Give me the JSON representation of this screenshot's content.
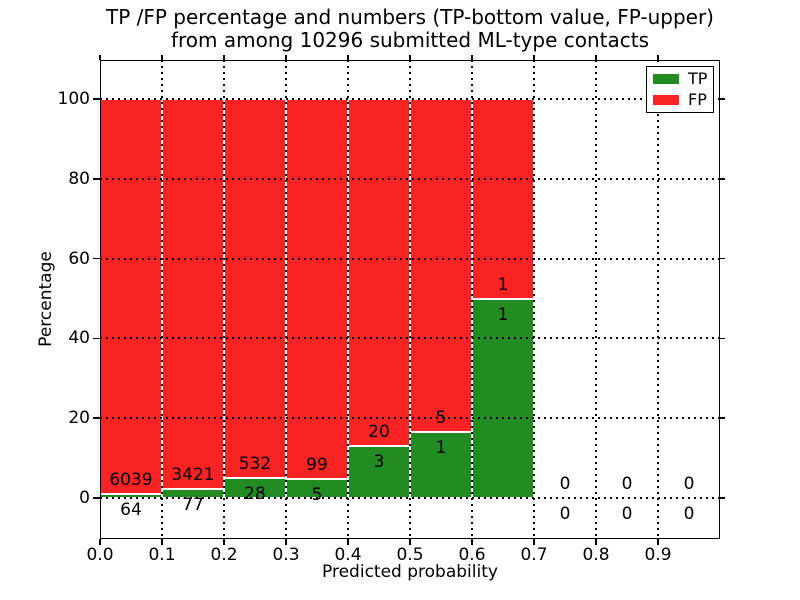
{
  "title": {
    "line1": "TP /FP percentage and numbers (TP-bottom value, FP-upper)",
    "line2": "from among 10296 submitted ML-type contacts"
  },
  "axes": {
    "xlabel": "Predicted probability",
    "ylabel": "Percentage",
    "xtick_labels": [
      "0.0",
      "0.1",
      "0.2",
      "0.3",
      "0.4",
      "0.5",
      "0.6",
      "0.7",
      "0.8",
      "0.9"
    ],
    "ytick_labels": [
      "0",
      "20",
      "40",
      "60",
      "80",
      "100"
    ],
    "ytick_values": [
      0,
      20,
      40,
      60,
      80,
      100
    ]
  },
  "legend": {
    "items": [
      {
        "label": "TP",
        "color": "#228b22"
      },
      {
        "label": "FP",
        "color": "#fa2323"
      }
    ]
  },
  "colors": {
    "tp": "#228b22",
    "fp": "#fa2323",
    "grid": "#000000",
    "frame": "#000000",
    "bar_edge": "#ffffff"
  },
  "chart_data": {
    "type": "bar",
    "stacked": true,
    "title": "TP /FP percentage and numbers (TP-bottom value, FP-upper) from among 10296 submitted ML-type contacts",
    "xlabel": "Predicted probability",
    "ylabel": "Percentage",
    "total_submitted": 10296,
    "bin_width": 0.1,
    "bin_starts": [
      0.0,
      0.1,
      0.2,
      0.3,
      0.4,
      0.5,
      0.6,
      0.7,
      0.8,
      0.9
    ],
    "categories": [
      "0.0-0.1",
      "0.1-0.2",
      "0.2-0.3",
      "0.3-0.4",
      "0.4-0.5",
      "0.5-0.6",
      "0.6-0.7",
      "0.7-0.8",
      "0.8-0.9",
      "0.9-1.0"
    ],
    "series": [
      {
        "name": "TP",
        "counts": [
          64,
          77,
          28,
          5,
          3,
          1,
          1,
          0,
          0,
          0
        ]
      },
      {
        "name": "FP",
        "counts": [
          6039,
          3421,
          532,
          99,
          20,
          5,
          1,
          0,
          0,
          0
        ]
      }
    ],
    "bar_height_rule": "each bin stacked to 100%; TP height = TP/(TP+FP)*100, FP height = FP/(TP+FP)*100; empty bins have no bar, only 0/0 labels",
    "annotation_rule": "FP count printed just above TP/FP boundary, TP count just below it",
    "xlim": [
      0.0,
      1.0
    ],
    "ylim_visible": [
      -10,
      110
    ],
    "yticks": [
      0,
      20,
      40,
      60,
      80,
      100
    ],
    "grid": "black dotted gridlines on both axes, drawn over bars",
    "legend_position": "upper right"
  }
}
